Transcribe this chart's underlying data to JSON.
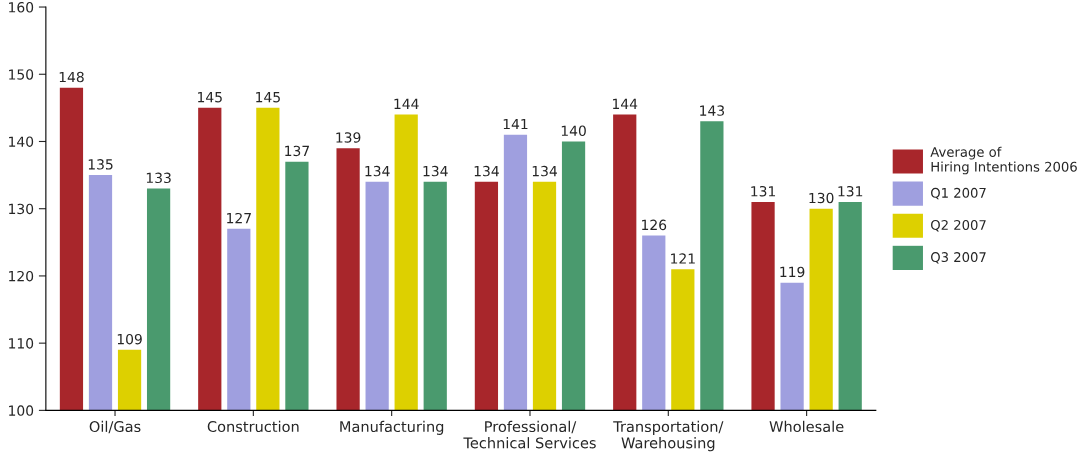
{
  "chart_data": {
    "type": "bar",
    "categories": [
      "Oil/Gas",
      "Construction",
      "Manufacturing",
      "Professional/\nTechnical Services",
      "Transportation/\nWarehousing",
      "Wholesale"
    ],
    "series": [
      {
        "name": "Average of\nHiring Intentions 2006",
        "color": "#a8262b",
        "values": [
          148,
          145,
          139,
          134,
          144,
          131
        ]
      },
      {
        "name": "Q1 2007",
        "color": "#9f9fdf",
        "values": [
          135,
          127,
          134,
          141,
          126,
          119
        ]
      },
      {
        "name": "Q2 2007",
        "color": "#ddd000",
        "values": [
          109,
          145,
          144,
          134,
          121,
          130
        ]
      },
      {
        "name": "Q3 2007",
        "color": "#4a9a6e",
        "values": [
          133,
          137,
          134,
          140,
          143,
          131
        ]
      }
    ],
    "ylim": [
      100,
      160
    ],
    "yticks": [
      100,
      110,
      120,
      130,
      140,
      150,
      160
    ],
    "grid": false,
    "legend": "right",
    "data_labels": true
  }
}
